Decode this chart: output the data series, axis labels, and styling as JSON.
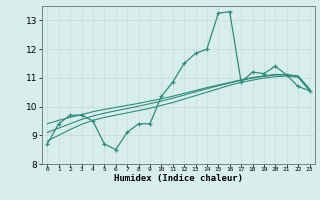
{
  "xlabel": "Humidex (Indice chaleur)",
  "x": [
    0,
    1,
    2,
    3,
    4,
    5,
    6,
    7,
    8,
    9,
    10,
    11,
    12,
    13,
    14,
    15,
    16,
    17,
    18,
    19,
    20,
    21,
    22,
    23
  ],
  "y_main": [
    8.7,
    9.4,
    9.7,
    9.7,
    9.5,
    8.7,
    8.5,
    9.1,
    9.4,
    9.4,
    10.35,
    10.85,
    11.5,
    11.85,
    12.0,
    13.25,
    13.3,
    10.85,
    11.2,
    11.15,
    11.4,
    11.1,
    10.7,
    10.55
  ],
  "y_smooth1": [
    8.8,
    9.0,
    9.2,
    9.38,
    9.52,
    9.62,
    9.7,
    9.78,
    9.86,
    9.94,
    10.04,
    10.14,
    10.26,
    10.38,
    10.5,
    10.62,
    10.74,
    10.84,
    10.92,
    10.99,
    11.04,
    11.06,
    11.02,
    10.55
  ],
  "y_smooth2": [
    9.1,
    9.25,
    9.4,
    9.55,
    9.67,
    9.77,
    9.85,
    9.93,
    10.01,
    10.1,
    10.19,
    10.29,
    10.4,
    10.51,
    10.62,
    10.72,
    10.82,
    10.91,
    10.99,
    11.05,
    11.1,
    11.1,
    11.05,
    10.6
  ],
  "y_smooth3": [
    9.4,
    9.52,
    9.62,
    9.72,
    9.82,
    9.9,
    9.97,
    10.04,
    10.11,
    10.19,
    10.27,
    10.36,
    10.46,
    10.56,
    10.66,
    10.75,
    10.84,
    10.93,
    11.01,
    11.07,
    11.12,
    11.11,
    11.07,
    10.62
  ],
  "ylim": [
    8.0,
    13.5
  ],
  "yticks": [
    8,
    9,
    10,
    11,
    12,
    13
  ],
  "line_color": "#2e8b7a",
  "bg_color": "#d8eeed",
  "grid_color_major": "#c8dcda",
  "grid_color_minor": "#e0eeec"
}
